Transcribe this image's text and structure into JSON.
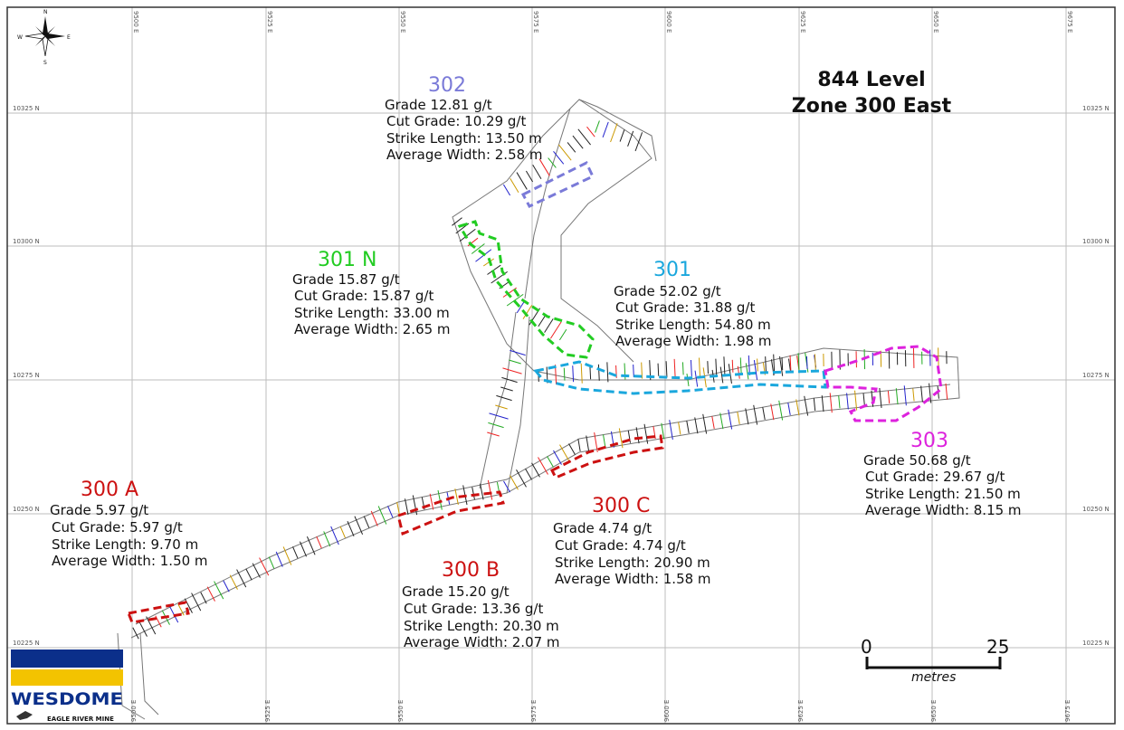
{
  "title": {
    "line1": "844 Level",
    "line2": "Zone 300 East"
  },
  "colors": {
    "zone_300": "#cc1111",
    "zone_301": "#1aa7dd",
    "zone_301n": "#22cc22",
    "zone_302": "#7a7ad8",
    "zone_303": "#dd22dd",
    "logo_blue": "#0b2f8a",
    "logo_yellow": "#f3c300"
  },
  "compass": {
    "n": "N",
    "s": "S",
    "e": "E",
    "w": "W"
  },
  "grid": {
    "eastings": [
      "9500 E",
      "9525 E",
      "9550 E",
      "9575 E",
      "9600 E",
      "9625 E",
      "9650 E",
      "9675 E"
    ],
    "northings": [
      "10325 N",
      "10300 N",
      "10275 N",
      "10250 N",
      "10225 N"
    ]
  },
  "zones": {
    "z302": {
      "name": "302",
      "grade": "Grade 12.81 g/t",
      "cut": "Cut Grade:  10.29 g/t",
      "strike": "Strike Length: 13.50 m",
      "width": "Average Width:  2.58 m"
    },
    "z301n": {
      "name": "301 N",
      "grade": "Grade 15.87 g/t",
      "cut": "Cut Grade:  15.87 g/t",
      "strike": "Strike Length: 33.00 m",
      "width": "Average Width:  2.65 m"
    },
    "z301": {
      "name": "301",
      "grade": "Grade 52.02 g/t",
      "cut": "Cut Grade:  31.88 g/t",
      "strike": "Strike Length: 54.80 m",
      "width": "Average Width:  1.98 m"
    },
    "z303": {
      "name": "303",
      "grade": "Grade 50.68 g/t",
      "cut": "Cut Grade:  29.67 g/t",
      "strike": "Strike Length: 21.50 m",
      "width": "Average Width:  8.15 m"
    },
    "z300a": {
      "name": "300 A",
      "grade": "Grade 5.97 g/t",
      "cut": "Cut Grade:  5.97 g/t",
      "strike": "Strike Length: 9.70 m",
      "width": "Average Width:  1.50 m"
    },
    "z300b": {
      "name": "300 B",
      "grade": "Grade 15.20 g/t",
      "cut": "Cut Grade:  13.36 g/t",
      "strike": "Strike Length: 20.30 m",
      "width": "Average Width:  2.07 m"
    },
    "z300c": {
      "name": "300 C",
      "grade": "Grade 4.74 g/t",
      "cut": "Cut Grade:  4.74 g/t",
      "strike": "Strike Length: 20.90 m",
      "width": "Average Width:  1.58 m"
    }
  },
  "scale": {
    "start": "0",
    "end": "25",
    "unit": "metres"
  },
  "logo": {
    "name": "WESDOME",
    "subtitle": "EAGLE RIVER MINE"
  }
}
